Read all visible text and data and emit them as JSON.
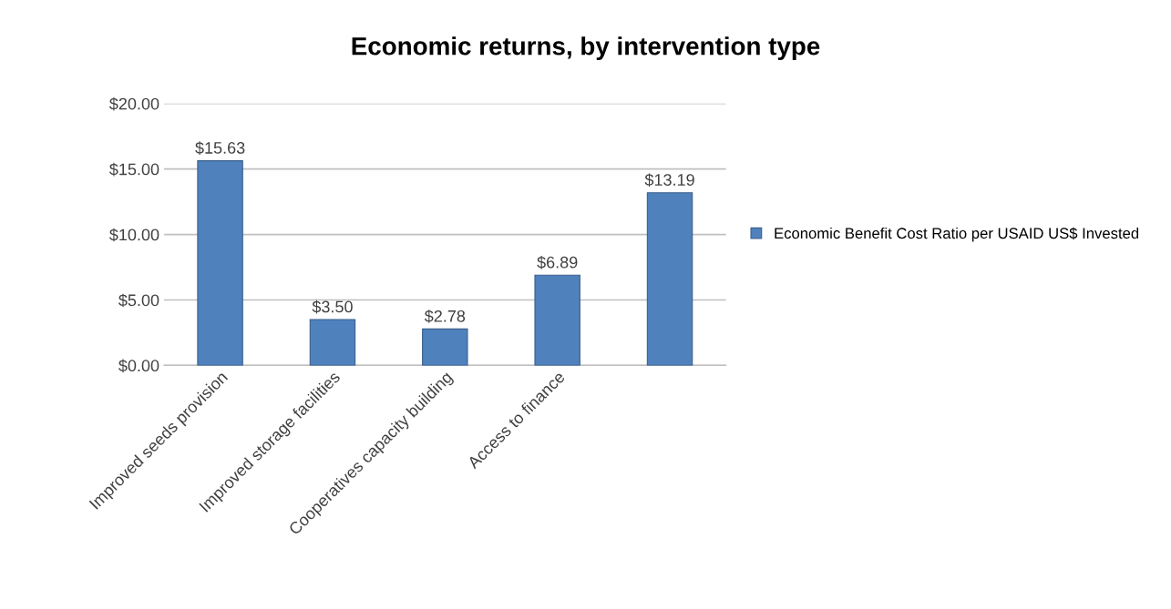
{
  "chart_data": {
    "type": "bar",
    "title": "Economic returns, by intervention type",
    "categories": [
      "Improved seeds provision",
      "Improved storage facilities",
      "Cooperatives capacity building",
      "Access to finance",
      null
    ],
    "series": [
      {
        "name": "Economic Benefit Cost Ratio per USAID US$ Invested",
        "color": "#4f81bd",
        "values": [
          15.63,
          3.5,
          2.78,
          6.89,
          13.19
        ],
        "value_labels": [
          "$15.63",
          "$3.50",
          "$2.78",
          "$6.89",
          "$13.19"
        ]
      }
    ],
    "ylim": [
      0,
      20
    ],
    "yticks": [
      {
        "value": 0,
        "label": "$0.00"
      },
      {
        "value": 5,
        "label": "$5.00"
      },
      {
        "value": 10,
        "label": "$10.00"
      },
      {
        "value": 15,
        "label": "$15.00"
      },
      {
        "value": 20,
        "label": "$20.00"
      }
    ],
    "grid": "y",
    "legend": "right"
  }
}
